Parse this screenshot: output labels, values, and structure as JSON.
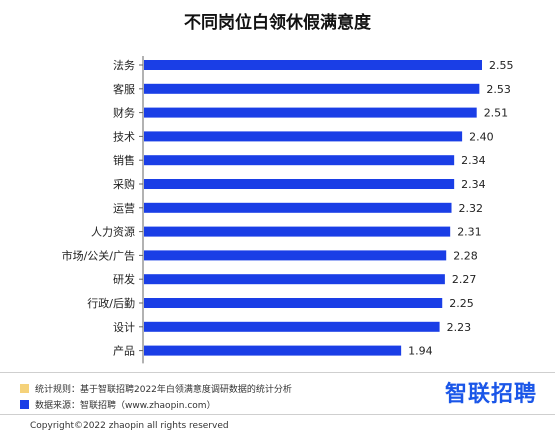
{
  "chart_data": {
    "type": "bar",
    "orientation": "horizontal",
    "title": "不同岗位白领休假满意度",
    "categories": [
      "法务",
      "客服",
      "财务",
      "技术",
      "销售",
      "采购",
      "运营",
      "人力资源",
      "市场/公关/广告",
      "研发",
      "行政/后勤",
      "设计",
      "产品"
    ],
    "values": [
      2.55,
      2.53,
      2.51,
      2.4,
      2.34,
      2.34,
      2.32,
      2.31,
      2.28,
      2.27,
      2.25,
      2.23,
      1.94
    ],
    "value_labels": [
      "2.55",
      "2.53",
      "2.51",
      "2.40",
      "2.34",
      "2.34",
      "2.32",
      "2.31",
      "2.28",
      "2.27",
      "2.25",
      "2.23",
      "1.94"
    ],
    "xlim": [
      0,
      2.55
    ],
    "grid": false,
    "bar_color": "#1a3ee6"
  },
  "notes": {
    "rule": {
      "label": "统计规则：基于智联招聘2022年白领满意度调研数据的统计分析",
      "color": "#f5d27a"
    },
    "source": {
      "label": "数据来源：智联招聘（www.zhaopin.com）",
      "color": "#1a3ee6"
    }
  },
  "brand": "智联招聘",
  "copyright": "Copyright©2022 zhaopin all rights reserved"
}
